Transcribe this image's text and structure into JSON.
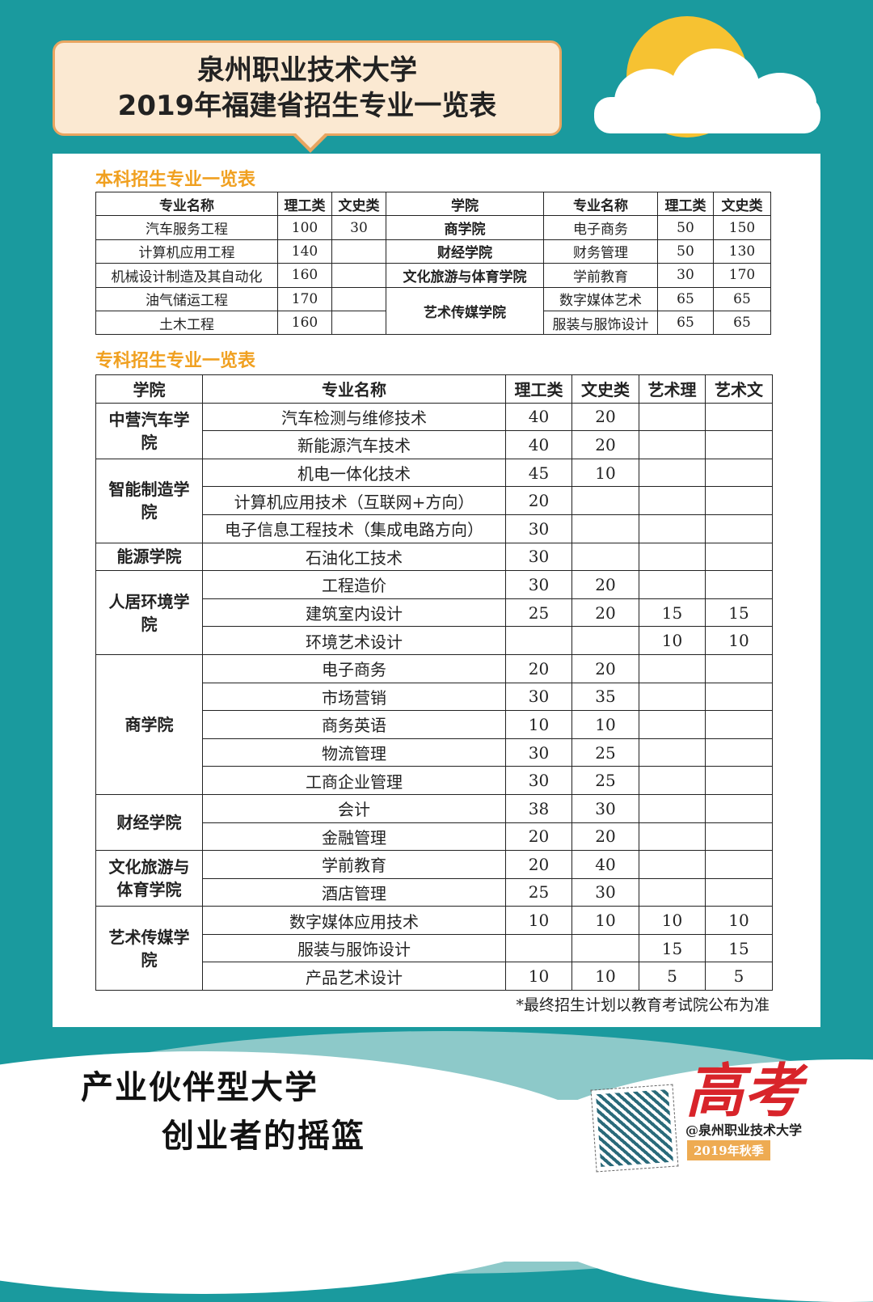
{
  "header": {
    "line1": "泉州职业技术大学",
    "line2": "2019年福建省招生专业一览表"
  },
  "undergrad": {
    "title": "本科招生专业一览表",
    "headers": [
      "专业名称",
      "理工类",
      "文史类",
      "学院",
      "专业名称",
      "理工类",
      "文史类"
    ],
    "left_rows": [
      [
        "汽车服务工程",
        "100",
        "30"
      ],
      [
        "计算机应用工程",
        "140",
        ""
      ],
      [
        "机械设计制造及其自动化",
        "160",
        ""
      ],
      [
        "油气储运工程",
        "170",
        ""
      ],
      [
        "土木工程",
        "160",
        ""
      ]
    ],
    "right_colleges": [
      "商学院",
      "财经学院",
      "文化旅游与体育学院",
      "艺术传媒学院"
    ],
    "right_rows": [
      [
        "电子商务",
        "50",
        "150"
      ],
      [
        "财务管理",
        "50",
        "130"
      ],
      [
        "学前教育",
        "30",
        "170"
      ],
      [
        "数字媒体艺术",
        "65",
        "65"
      ],
      [
        "服装与服饰设计",
        "65",
        "65"
      ]
    ]
  },
  "college": {
    "title": "专科招生专业一览表",
    "headers": [
      "学院",
      "专业名称",
      "理工类",
      "文史类",
      "艺术理",
      "艺术文"
    ],
    "groups": [
      {
        "name": "中营汽车学院",
        "rows": [
          [
            "汽车检测与维修技术",
            "40",
            "20",
            "",
            ""
          ],
          [
            "新能源汽车技术",
            "40",
            "20",
            "",
            ""
          ]
        ]
      },
      {
        "name": "智能制造学院",
        "rows": [
          [
            "机电一体化技术",
            "45",
            "10",
            "",
            ""
          ],
          [
            "计算机应用技术（互联网+方向）",
            "20",
            "",
            "",
            ""
          ],
          [
            "电子信息工程技术（集成电路方向）",
            "30",
            "",
            "",
            ""
          ]
        ]
      },
      {
        "name": "能源学院",
        "rows": [
          [
            "石油化工技术",
            "30",
            "",
            "",
            ""
          ]
        ]
      },
      {
        "name": "人居环境学院",
        "rows": [
          [
            "工程造价",
            "30",
            "20",
            "",
            ""
          ],
          [
            "建筑室内设计",
            "25",
            "20",
            "15",
            "15"
          ],
          [
            "环境艺术设计",
            "",
            "",
            "10",
            "10"
          ]
        ]
      },
      {
        "name": "商学院",
        "rows": [
          [
            "电子商务",
            "20",
            "20",
            "",
            ""
          ],
          [
            "市场营销",
            "30",
            "35",
            "",
            ""
          ],
          [
            "商务英语",
            "10",
            "10",
            "",
            ""
          ],
          [
            "物流管理",
            "30",
            "25",
            "",
            ""
          ],
          [
            "工商企业管理",
            "30",
            "25",
            "",
            ""
          ]
        ]
      },
      {
        "name": "财经学院",
        "rows": [
          [
            "会计",
            "38",
            "30",
            "",
            ""
          ],
          [
            "金融管理",
            "20",
            "20",
            "",
            ""
          ]
        ]
      },
      {
        "name": "文化旅游与体育学院",
        "rows": [
          [
            "学前教育",
            "20",
            "40",
            "",
            ""
          ],
          [
            "酒店管理",
            "25",
            "30",
            "",
            ""
          ]
        ]
      },
      {
        "name": "艺术传媒学院",
        "rows": [
          [
            "数字媒体应用技术",
            "10",
            "10",
            "10",
            "10"
          ],
          [
            "服装与服饰设计",
            "",
            "",
            "15",
            "15"
          ],
          [
            "产品艺术设计",
            "10",
            "10",
            "5",
            "5"
          ]
        ]
      }
    ]
  },
  "note": "*最终招生计划以教育考试院公布为准",
  "footer": {
    "slogan1": "产业伙伴型大学",
    "slogan2": "创业者的摇篮",
    "gaokao": "高考",
    "account": "@泉州职业技术大学",
    "season": "2019年秋季"
  },
  "colors": {
    "background": "#1a9a9e",
    "accent": "#f0a020",
    "sun": "#f6c232",
    "gaokao": "#d8242a"
  }
}
